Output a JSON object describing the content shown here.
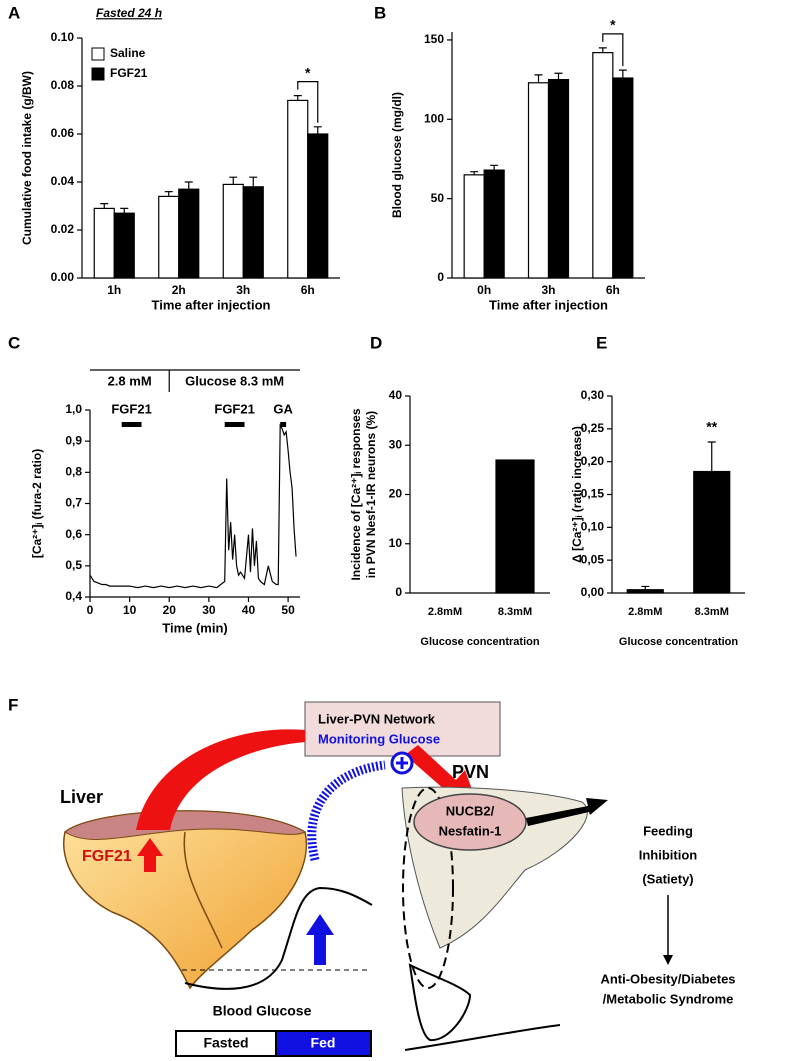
{
  "chart_data": [
    {
      "type": "bar",
      "label": "A",
      "title": "Fasted 24 h",
      "ylabel": "Cumulative food intake (g/BW)",
      "xlabel": "Time after injection",
      "categories": [
        "1h",
        "2h",
        "3h",
        "6h"
      ],
      "series": [
        {
          "name": "Saline",
          "color": "#ffffff",
          "values": [
            0.029,
            0.034,
            0.039,
            0.074
          ],
          "errors": [
            0.002,
            0.002,
            0.003,
            0.002
          ]
        },
        {
          "name": "FGF21",
          "color": "#000000",
          "values": [
            0.027,
            0.037,
            0.038,
            0.06
          ],
          "errors": [
            0.002,
            0.003,
            0.004,
            0.003
          ]
        }
      ],
      "ylim": [
        0,
        0.1
      ],
      "yticks": [
        {
          "value": 0,
          "label": "0.00"
        },
        {
          "value": 0.02,
          "label": "0.02"
        },
        {
          "value": 0.04,
          "label": "0.04"
        },
        {
          "value": 0.06,
          "label": "0.06"
        },
        {
          "value": 0.08,
          "label": "0.08"
        },
        {
          "value": 0.1,
          "label": "0.10"
        }
      ],
      "legend": "upper left",
      "annotations": [
        "*"
      ]
    },
    {
      "type": "bar",
      "label": "B",
      "ylabel": "Blood glucose (mg/dl)",
      "xlabel": "Time after injection",
      "categories": [
        "0h",
        "3h",
        "6h"
      ],
      "series": [
        {
          "name": "Saline",
          "color": "#ffffff",
          "values": [
            65,
            123,
            142
          ],
          "errors": [
            2,
            5,
            3
          ]
        },
        {
          "name": "FGF21",
          "color": "#000000",
          "values": [
            68,
            125,
            126
          ],
          "errors": [
            3,
            4,
            5
          ]
        }
      ],
      "ylim": [
        0,
        155
      ],
      "yticks": [
        0,
        50,
        100,
        150
      ],
      "annotations": [
        "*"
      ]
    },
    {
      "type": "line",
      "label": "C",
      "ylabel": "[Ca²⁺]ᵢ (fura-2 ratio)",
      "xlabel": "Time (min)",
      "color": "#000000",
      "x": [
        0,
        1,
        2,
        3,
        4,
        5,
        6,
        8,
        10,
        12,
        14,
        16,
        18,
        20,
        22,
        24,
        26,
        28,
        30,
        32,
        33,
        34,
        34.5,
        35,
        35.5,
        36,
        36.5,
        37,
        37.5,
        38,
        39,
        40,
        40.5,
        41,
        41.5,
        42,
        42.5,
        43,
        44,
        45,
        46,
        47,
        47.5,
        48,
        48.5,
        49,
        49.5,
        50,
        50.5,
        51,
        51.5,
        52
      ],
      "values": [
        0.47,
        0.45,
        0.445,
        0.44,
        0.44,
        0.435,
        0.435,
        0.435,
        0.435,
        0.43,
        0.435,
        0.43,
        0.435,
        0.43,
        0.435,
        0.43,
        0.435,
        0.43,
        0.435,
        0.43,
        0.44,
        0.45,
        0.78,
        0.55,
        0.64,
        0.52,
        0.6,
        0.5,
        0.47,
        0.48,
        0.46,
        0.6,
        0.48,
        0.62,
        0.5,
        0.58,
        0.46,
        0.45,
        0.44,
        0.5,
        0.45,
        0.44,
        0.44,
        0.95,
        0.94,
        0.92,
        0.93,
        0.87,
        0.8,
        0.75,
        0.62,
        0.53
      ],
      "xlim": [
        0,
        53
      ],
      "xticks": [
        0,
        10,
        20,
        30,
        40,
        50
      ],
      "ylim": [
        0.4,
        1.0
      ],
      "yticks": [
        {
          "value": 0.4,
          "label": "0,4"
        },
        {
          "value": 0.5,
          "label": "0,5"
        },
        {
          "value": 0.6,
          "label": "0,6"
        },
        {
          "value": 0.7,
          "label": "0,7"
        },
        {
          "value": 0.8,
          "label": "0,8"
        },
        {
          "value": 0.9,
          "label": "0,9"
        },
        {
          "value": 1.0,
          "label": "1,0"
        }
      ],
      "segments": [
        {
          "label": "2.8 mM",
          "start": 0,
          "end": 20
        },
        {
          "label": "Glucose 8.3 mM",
          "start": 20,
          "end": 53
        }
      ],
      "stimuli": [
        {
          "label": "FGF21",
          "start": 8,
          "end": 13
        },
        {
          "label": "FGF21",
          "start": 34,
          "end": 39
        },
        {
          "label": "GA",
          "start": 48,
          "end": 49.5
        }
      ]
    },
    {
      "type": "bar",
      "label": "D",
      "ylabel": [
        "Incidence of [Ca²⁺]ᵢ responses",
        "in PVN Nesf-1-IR neurons (%)"
      ],
      "xlabel": "Glucose concentration",
      "categories": [
        "2.8mM",
        "8.3mM"
      ],
      "values": [
        0,
        27
      ],
      "color": "#000000",
      "ylim": [
        0,
        40
      ],
      "yticks": [
        0,
        10,
        20,
        30,
        40
      ]
    },
    {
      "type": "bar",
      "label": "E",
      "ylabel": "Δ [Ca²⁺]ᵢ (ratio increase)",
      "xlabel": "Glucose concentration",
      "categories": [
        "2.8mM",
        "8.3mM"
      ],
      "values": [
        0.005,
        0.185
      ],
      "errors": [
        0.005,
        0.045
      ],
      "color": "#000000",
      "ylim": [
        0,
        0.3
      ],
      "yticks": [
        {
          "value": 0,
          "label": "0,00"
        },
        {
          "value": 0.05,
          "label": "0,05"
        },
        {
          "value": 0.1,
          "label": "0,10"
        },
        {
          "value": 0.15,
          "label": "0,15"
        },
        {
          "value": 0.2,
          "label": "0,20"
        },
        {
          "value": 0.25,
          "label": "0,25"
        },
        {
          "value": 0.3,
          "label": "0,30"
        }
      ],
      "annotations": [
        "**"
      ]
    }
  ],
  "diagram": {
    "label": "F",
    "network": [
      "Liver-PVN Network",
      "Monitoring Glucose"
    ],
    "liver": "Liver",
    "hormone": "FGF21",
    "pvn": "PVN",
    "neuron": [
      "NUCB2/",
      "Nesfatin-1"
    ],
    "effect": [
      "Feeding",
      "Inhibition",
      "(Satiety)"
    ],
    "outcome": [
      "Anti-Obesity/Diabetes",
      "/Metabolic Syndrome"
    ],
    "glucose": "Blood Glucose",
    "states": [
      "Fasted",
      "Fed"
    ]
  }
}
